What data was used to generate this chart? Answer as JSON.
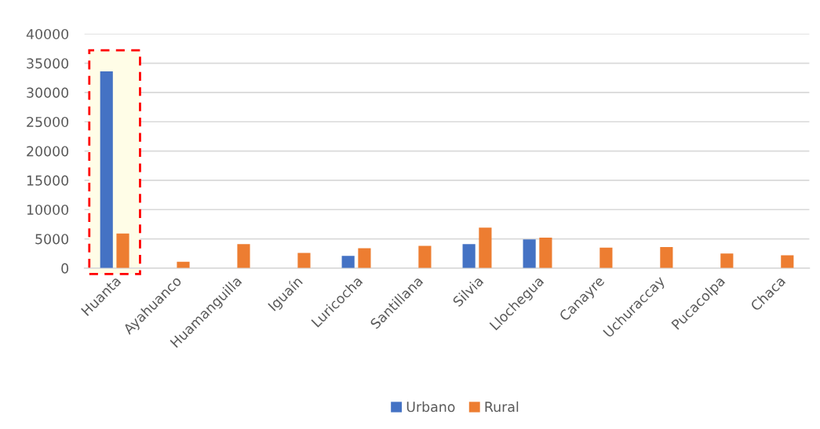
{
  "chart_data": {
    "type": "bar",
    "categories": [
      "Huanta",
      "Ayahuanco",
      "Huamanguilla",
      "Iguaín",
      "Luricocha",
      "Santillana",
      "Silvia",
      "Llochegua",
      "Canayre",
      "Uchuraccay",
      "Pucacolpa",
      "Chaca"
    ],
    "series": [
      {
        "name": "Urbano",
        "color": "#4472c4",
        "values": [
          33600,
          null,
          null,
          null,
          2100,
          null,
          4100,
          4900,
          null,
          null,
          null,
          null
        ]
      },
      {
        "name": "Rural",
        "color": "#ed7d31",
        "values": [
          5900,
          1100,
          4100,
          2600,
          3400,
          3800,
          6900,
          5200,
          3500,
          3600,
          2500,
          2200
        ]
      }
    ],
    "ylim": [
      0,
      40000
    ],
    "yticks": [
      0,
      5000,
      10000,
      15000,
      20000,
      25000,
      30000,
      35000,
      40000
    ],
    "grid": "y",
    "legend": "bottom",
    "bands": [
      {
        "axis": "x",
        "from": "Huanta",
        "to": "Huanta",
        "color": "#fffde7"
      }
    ]
  }
}
